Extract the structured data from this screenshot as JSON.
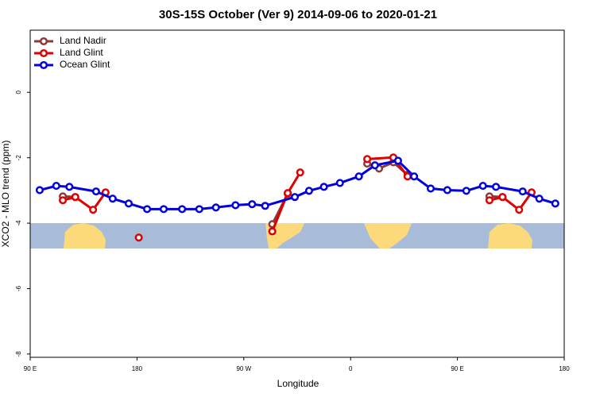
{
  "chart_data": {
    "type": "line",
    "title": "30S-15S October (Ver 9)   2014-09-06 to 2020-01-21",
    "x_label": "Longitude",
    "y_label": "XCO2 - MLO trend (ppm)",
    "xlim": [
      90,
      540
    ],
    "xticks": [
      {
        "value": 90,
        "label": "90 E"
      },
      {
        "value": 180,
        "label": "180"
      },
      {
        "value": 270,
        "label": "90 W"
      },
      {
        "value": 360,
        "label": "0"
      },
      {
        "value": 450,
        "label": "90 E"
      },
      {
        "value": 540,
        "label": "180"
      }
    ],
    "ylim": [
      -8.1,
      1.9
    ],
    "yticks": [
      0,
      -2,
      -4,
      -6,
      -8
    ],
    "legend": "top-left",
    "series": [
      {
        "name": "Land Nadir",
        "color": "#8b3a3a",
        "x": [
          117.5,
          128,
          null,
          294,
          307,
          null,
          374,
          384,
          396,
          408,
          null,
          477,
          488
        ],
        "values": [
          -3.18,
          -3.2,
          null,
          -4.03,
          -3.1,
          null,
          -2.18,
          -2.33,
          -2.14,
          -2.52,
          null,
          -3.18,
          -3.2
        ]
      },
      {
        "name": "Land Glint",
        "color": "#e00000",
        "x": [
          117.5,
          128,
          143,
          153.5,
          null,
          181.5,
          null,
          294,
          307,
          317.5,
          null,
          374,
          396,
          408,
          null,
          477,
          488,
          502,
          512.5
        ],
        "values": [
          -3.3,
          -3.2,
          -3.59,
          -3.06,
          null,
          -4.44,
          null,
          -4.25,
          -3.08,
          -2.45,
          null,
          -2.04,
          -1.99,
          -2.57,
          null,
          -3.3,
          -3.2,
          -3.59,
          -3.06
        ]
      },
      {
        "name": "Ocean Glint",
        "color": "#0000e0",
        "x": [
          98,
          112,
          123,
          145.5,
          159.5,
          173,
          188.5,
          202.5,
          218,
          232.5,
          246.5,
          263,
          277,
          288,
          313,
          325,
          337.5,
          351,
          367,
          380.5,
          400,
          413.5,
          427.5,
          441.5,
          457.5,
          471.5,
          482.5,
          505,
          519,
          532.5
        ],
        "values": [
          -2.99,
          -2.86,
          -2.89,
          -3.03,
          -3.25,
          -3.4,
          -3.57,
          -3.57,
          -3.57,
          -3.57,
          -3.52,
          -3.45,
          -3.42,
          -3.47,
          -3.2,
          -3.01,
          -2.89,
          -2.77,
          -2.57,
          -2.23,
          -2.09,
          -2.57,
          -2.94,
          -2.99,
          -3.01,
          -2.86,
          -2.89,
          -3.03,
          -3.25,
          -3.4
        ]
      }
    ]
  }
}
